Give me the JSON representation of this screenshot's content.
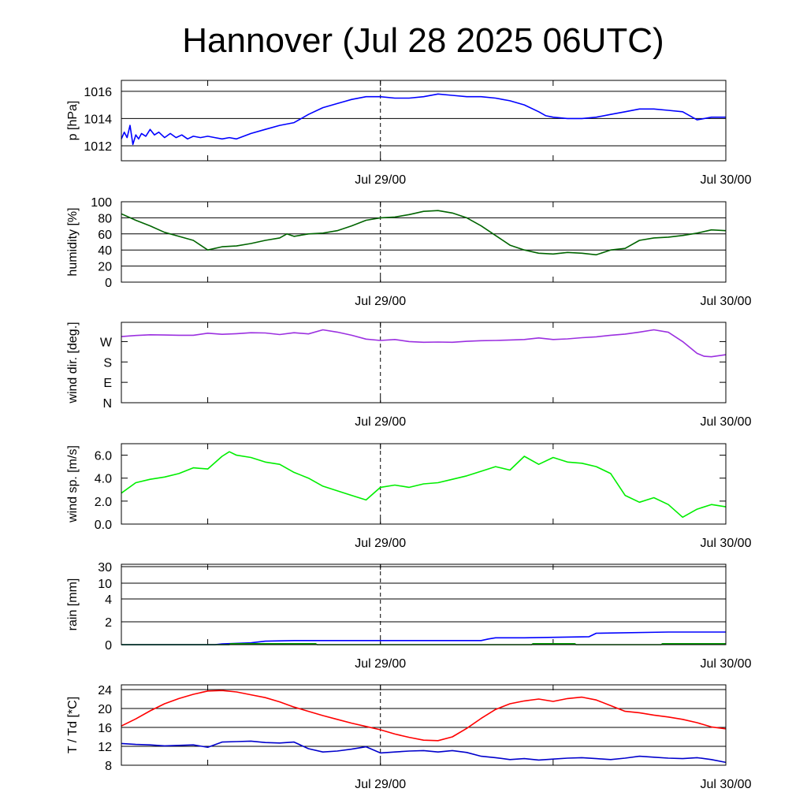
{
  "title": "Hannover (Jul 28 2025 06UTC)",
  "x_tick_labels": [
    "Jul 29/00",
    "Jul 30/00"
  ],
  "x_range_hours": [
    0,
    42
  ],
  "x_ticks_hours": [
    6,
    18,
    30,
    42
  ],
  "x_labeled_ticks_hours": [
    18,
    42
  ],
  "vline_hours": 18,
  "chart_data": [
    {
      "type": "line",
      "ylabel": "p [hPa]",
      "ylim": [
        1010.9,
        1016.8
      ],
      "yticks": [
        {
          "v": 1012,
          "label": "1012"
        },
        {
          "v": 1014,
          "label": "1014"
        },
        {
          "v": 1016,
          "label": "1016"
        }
      ],
      "grid": true,
      "series": [
        {
          "color": "#0000ff",
          "x": [
            0,
            0.2,
            0.4,
            0.6,
            0.8,
            1.0,
            1.2,
            1.4,
            1.7,
            2.0,
            2.3,
            2.6,
            3.0,
            3.4,
            3.8,
            4.2,
            4.6,
            5.0,
            5.5,
            6.0,
            6.5,
            7.0,
            7.5,
            8.0,
            9.0,
            10.0,
            11.0,
            12.0,
            13.0,
            14.0,
            15.0,
            16.0,
            17.0,
            17.5,
            18.0,
            19.0,
            20.0,
            21.0,
            22.0,
            23.0,
            24.0,
            25.0,
            26.0,
            27.0,
            28.0,
            29.0,
            29.5,
            30.0,
            31.0,
            32.0,
            33.0,
            34.0,
            35.0,
            36.0,
            37.0,
            38.0,
            39.0,
            40.0,
            41.0,
            42.0
          ],
          "y": [
            1012.5,
            1013.0,
            1012.6,
            1013.5,
            1012.1,
            1012.8,
            1012.5,
            1012.9,
            1012.7,
            1013.2,
            1012.8,
            1013.0,
            1012.6,
            1012.9,
            1012.6,
            1012.8,
            1012.5,
            1012.7,
            1012.6,
            1012.7,
            1012.6,
            1012.5,
            1012.6,
            1012.5,
            1012.9,
            1013.2,
            1013.5,
            1013.7,
            1014.3,
            1014.8,
            1015.1,
            1015.4,
            1015.6,
            1015.6,
            1015.6,
            1015.5,
            1015.5,
            1015.6,
            1015.8,
            1015.7,
            1015.6,
            1015.6,
            1015.5,
            1015.3,
            1015.0,
            1014.5,
            1014.2,
            1014.1,
            1014.0,
            1014.0,
            1014.1,
            1014.3,
            1014.5,
            1014.7,
            1014.7,
            1014.6,
            1014.5,
            1013.9,
            1014.1,
            1014.1
          ]
        }
      ]
    },
    {
      "type": "line",
      "ylabel": "humidity [%]",
      "ylim": [
        0,
        100
      ],
      "yticks": [
        {
          "v": 0,
          "label": "0"
        },
        {
          "v": 20,
          "label": "20"
        },
        {
          "v": 40,
          "label": "40"
        },
        {
          "v": 60,
          "label": "60"
        },
        {
          "v": 80,
          "label": "80"
        },
        {
          "v": 100,
          "label": "100"
        }
      ],
      "grid": true,
      "series": [
        {
          "color": "#006400",
          "x": [
            0,
            1,
            2,
            3,
            4,
            5,
            5.5,
            6,
            7,
            8,
            9,
            10,
            11,
            11.5,
            12,
            13,
            14,
            15,
            16,
            17,
            18,
            19,
            20,
            21,
            22,
            23,
            24,
            25,
            26,
            27,
            28,
            29,
            30,
            31,
            32,
            33,
            34,
            35,
            36,
            37,
            38,
            39,
            40,
            41,
            42
          ],
          "y": [
            85,
            77,
            70,
            62,
            57,
            52,
            46,
            40,
            44,
            45,
            48,
            52,
            55,
            60,
            57,
            60,
            61,
            64,
            70,
            77,
            80,
            81,
            84,
            88,
            89,
            86,
            80,
            70,
            58,
            46,
            40,
            36,
            35,
            37,
            36,
            34,
            40,
            42,
            52,
            55,
            56,
            58,
            61,
            65,
            64
          ]
        }
      ]
    },
    {
      "type": "line",
      "ylabel": "wind dir. [deg.]",
      "ylim": [
        0,
        355
      ],
      "yticks": [
        {
          "v": 0,
          "label": "N"
        },
        {
          "v": 90,
          "label": "E"
        },
        {
          "v": 180,
          "label": "S"
        },
        {
          "v": 270,
          "label": "W"
        }
      ],
      "grid": false,
      "series": [
        {
          "color": "#9b30e0",
          "x": [
            0,
            1,
            2,
            3,
            4,
            5,
            6,
            7,
            8,
            9,
            10,
            11,
            12,
            13,
            14,
            15,
            16,
            17,
            18,
            19,
            20,
            21,
            22,
            23,
            24,
            25,
            26,
            27,
            28,
            29,
            30,
            31,
            32,
            33,
            34,
            35,
            36,
            37,
            38,
            39,
            40,
            40.5,
            41,
            42
          ],
          "y": [
            292,
            297,
            300,
            299,
            298,
            298,
            307,
            302,
            305,
            309,
            308,
            301,
            309,
            304,
            322,
            312,
            298,
            281,
            275,
            279,
            270,
            267,
            268,
            267,
            271,
            274,
            275,
            277,
            279,
            286,
            279,
            282,
            287,
            291,
            298,
            303,
            312,
            322,
            311,
            270,
            218,
            205,
            203,
            212
          ]
        }
      ]
    },
    {
      "type": "line",
      "ylabel": "wind sp. [m/s]",
      "ylim": [
        0,
        7.0
      ],
      "yticks": [
        {
          "v": 0,
          "label": "0.0"
        },
        {
          "v": 2,
          "label": "2.0"
        },
        {
          "v": 4,
          "label": "4.0"
        },
        {
          "v": 6,
          "label": "6.0"
        }
      ],
      "grid": false,
      "series": [
        {
          "color": "#00ee00",
          "x": [
            0,
            1,
            2,
            3,
            4,
            5,
            6,
            7,
            7.5,
            8,
            9,
            10,
            11,
            12,
            13,
            14,
            15,
            16,
            17,
            18,
            19,
            20,
            21,
            22,
            23,
            24,
            25,
            26,
            27,
            28,
            29,
            30,
            31,
            32,
            33,
            34,
            35,
            36,
            37,
            38,
            39,
            40,
            41,
            42
          ],
          "y": [
            2.7,
            3.6,
            3.9,
            4.1,
            4.4,
            4.9,
            4.8,
            5.9,
            6.3,
            6.0,
            5.8,
            5.4,
            5.2,
            4.5,
            4.0,
            3.3,
            2.9,
            2.5,
            2.1,
            3.2,
            3.4,
            3.2,
            3.5,
            3.6,
            3.9,
            4.2,
            4.6,
            5.0,
            4.7,
            5.9,
            5.2,
            5.8,
            5.4,
            5.3,
            5.0,
            4.4,
            2.5,
            1.9,
            2.3,
            1.7,
            0.6,
            1.3,
            1.7,
            1.5
          ]
        }
      ]
    },
    {
      "type": "line",
      "ylabel": "rain [mm]",
      "ylim": [
        0,
        5
      ],
      "ymapping": "piecewise",
      "yticks": [
        {
          "v": 0,
          "label": "0"
        },
        {
          "v": 1,
          "label": "2"
        },
        {
          "v": 2,
          "label": "4"
        },
        {
          "v": 3,
          "label": "10"
        },
        {
          "v": 4,
          "label": "30"
        }
      ],
      "grid": true,
      "series": [
        {
          "color": "#0000ff",
          "x": [
            0,
            6.5,
            7,
            9,
            10,
            12,
            18,
            25,
            25.5,
            26,
            28,
            32.5,
            33,
            38,
            42
          ],
          "y": [
            0,
            0,
            0.03,
            0.08,
            0.15,
            0.18,
            0.18,
            0.18,
            0.25,
            0.3,
            0.3,
            0.35,
            0.5,
            0.55,
            0.55
          ]
        },
        {
          "color": "#009900",
          "x": [
            0,
            7.5,
            7.6,
            13.5,
            13.6,
            28.5,
            28.6,
            31.5,
            31.6,
            37.5,
            37.6,
            42
          ],
          "y": [
            0,
            0,
            0.04,
            0.04,
            0,
            0,
            0.04,
            0.04,
            0,
            0,
            0.04,
            0.04
          ]
        }
      ]
    },
    {
      "type": "line",
      "ylabel": "T / Td [*C]",
      "ylim": [
        8,
        25
      ],
      "yticks": [
        {
          "v": 8,
          "label": "8"
        },
        {
          "v": 12,
          "label": "12"
        },
        {
          "v": 16,
          "label": "16"
        },
        {
          "v": 20,
          "label": "20"
        },
        {
          "v": 24,
          "label": "24"
        }
      ],
      "grid": true,
      "series": [
        {
          "color": "#ff0000",
          "x": [
            0,
            1,
            2,
            3,
            4,
            5,
            6,
            7,
            8,
            9,
            10,
            11,
            12,
            13,
            14,
            15,
            16,
            17,
            18,
            19,
            20,
            21,
            22,
            23,
            24,
            25,
            26,
            27,
            28,
            29,
            30,
            31,
            32,
            33,
            34,
            35,
            36,
            37,
            38,
            39,
            40,
            41,
            42
          ],
          "y": [
            16.3,
            17.8,
            19.5,
            21.0,
            22.1,
            23.0,
            23.7,
            23.8,
            23.5,
            22.9,
            22.3,
            21.4,
            20.3,
            19.4,
            18.5,
            17.7,
            16.9,
            16.2,
            15.5,
            14.6,
            13.9,
            13.3,
            13.2,
            14.0,
            15.8,
            17.9,
            19.8,
            21.0,
            21.6,
            22.0,
            21.5,
            22.1,
            22.4,
            21.8,
            20.6,
            19.4,
            19.1,
            18.6,
            18.2,
            17.7,
            17.0,
            16.1,
            15.7
          ]
        },
        {
          "color": "#0000cc",
          "x": [
            0,
            1,
            2,
            3,
            4,
            5,
            6,
            7,
            8,
            9,
            10,
            11,
            12,
            13,
            14,
            15,
            16,
            17,
            18,
            19,
            20,
            21,
            22,
            23,
            24,
            25,
            26,
            27,
            28,
            29,
            30,
            31,
            32,
            33,
            34,
            35,
            36,
            37,
            38,
            39,
            40,
            41,
            42
          ],
          "y": [
            12.6,
            12.4,
            12.3,
            12.1,
            12.2,
            12.3,
            11.8,
            12.9,
            13.0,
            13.1,
            12.8,
            12.7,
            12.9,
            11.5,
            10.8,
            11.0,
            11.4,
            11.9,
            10.6,
            10.8,
            11.0,
            11.1,
            10.8,
            11.1,
            10.7,
            9.9,
            9.6,
            9.2,
            9.4,
            9.1,
            9.3,
            9.5,
            9.6,
            9.4,
            9.2,
            9.5,
            9.9,
            9.7,
            9.5,
            9.4,
            9.6,
            9.2,
            8.6
          ]
        }
      ]
    }
  ]
}
